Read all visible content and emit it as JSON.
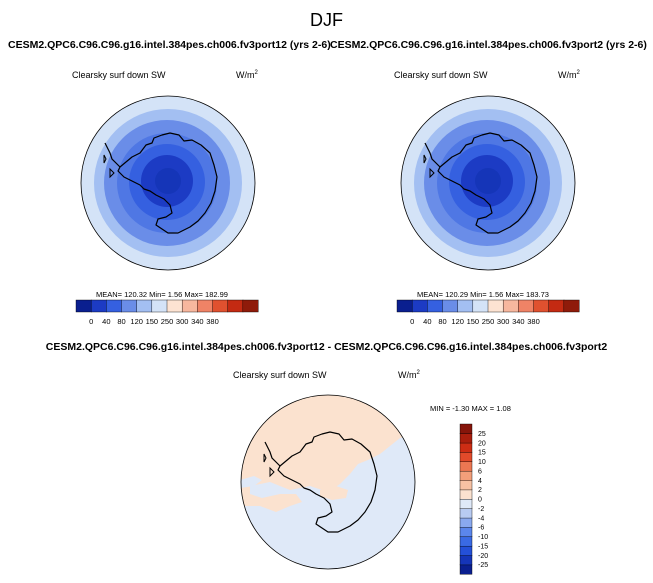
{
  "figure": {
    "title": "DJF",
    "case1_title": "CESM2.QPC6.C96.C96.g16.intel.384pes.ch006.fv3port12 (yrs 2-6)",
    "case2_title": "CESM2.QPC6.C96.C96.g16.intel.384pes.ch006.fv3port2 (yrs 2-6)",
    "diff_title": "CESM2.QPC6.C96.C96.g16.intel.384pes.ch006.fv3port12 - CESM2.QPC6.C96.C96.g16.intel.384pes.ch006.fv3port2"
  },
  "panels": [
    {
      "variable": "Clearsky surf down SW",
      "unit_base": "W/m",
      "unit_exp": "2",
      "stats": "MEAN= 120.32  Min=   1.56  Max= 182.99"
    },
    {
      "variable": "Clearsky surf down SW",
      "unit_base": "W/m",
      "unit_exp": "2",
      "stats": "MEAN= 120.29  Min=   1.56  Max= 183.73"
    },
    {
      "variable": "Clearsky surf down SW",
      "unit_base": "W/m",
      "unit_exp": "2",
      "stats": "MIN =  -1.30 MAX =   1.08"
    }
  ],
  "colorbar_main": {
    "colors": [
      "#0a1f8f",
      "#1c3bc4",
      "#3560e0",
      "#6a8de8",
      "#a3bff2",
      "#d4e3f7",
      "#fde3d2",
      "#f7b79e",
      "#ef8366",
      "#e0512f",
      "#c42a12",
      "#8f1b0a"
    ],
    "labels": [
      "0",
      "40",
      "80",
      "120",
      "150",
      "250",
      "300",
      "340",
      "380"
    ]
  },
  "colorbar_diff": {
    "colors": [
      "#0a1f8f",
      "#1535b8",
      "#2450d8",
      "#3a6ae4",
      "#5b86ec",
      "#8aa9ef",
      "#b8cbf2",
      "#dfe9f8",
      "#fbe2cf",
      "#f7c2a4",
      "#f39f7a",
      "#ec7752",
      "#e24a2a",
      "#cd2d14",
      "#a91e0d",
      "#86150a"
    ],
    "labels": [
      "25",
      "20",
      "15",
      "10",
      "6",
      "4",
      "2",
      "0",
      "-2",
      "-4",
      "-6",
      "-10",
      "-15",
      "-20",
      "-25"
    ]
  },
  "map_colors": {
    "ring1": "#d4e3f7",
    "ring2": "#a3bff2",
    "ring3": "#6a8de8",
    "ring4": "#4f77e4",
    "ring5": "#3560e0",
    "ring6": "#1c3bc4",
    "ring7": "#1535b8",
    "diff_positive": "#fbe2cf",
    "diff_negative": "#dfe9f8"
  }
}
